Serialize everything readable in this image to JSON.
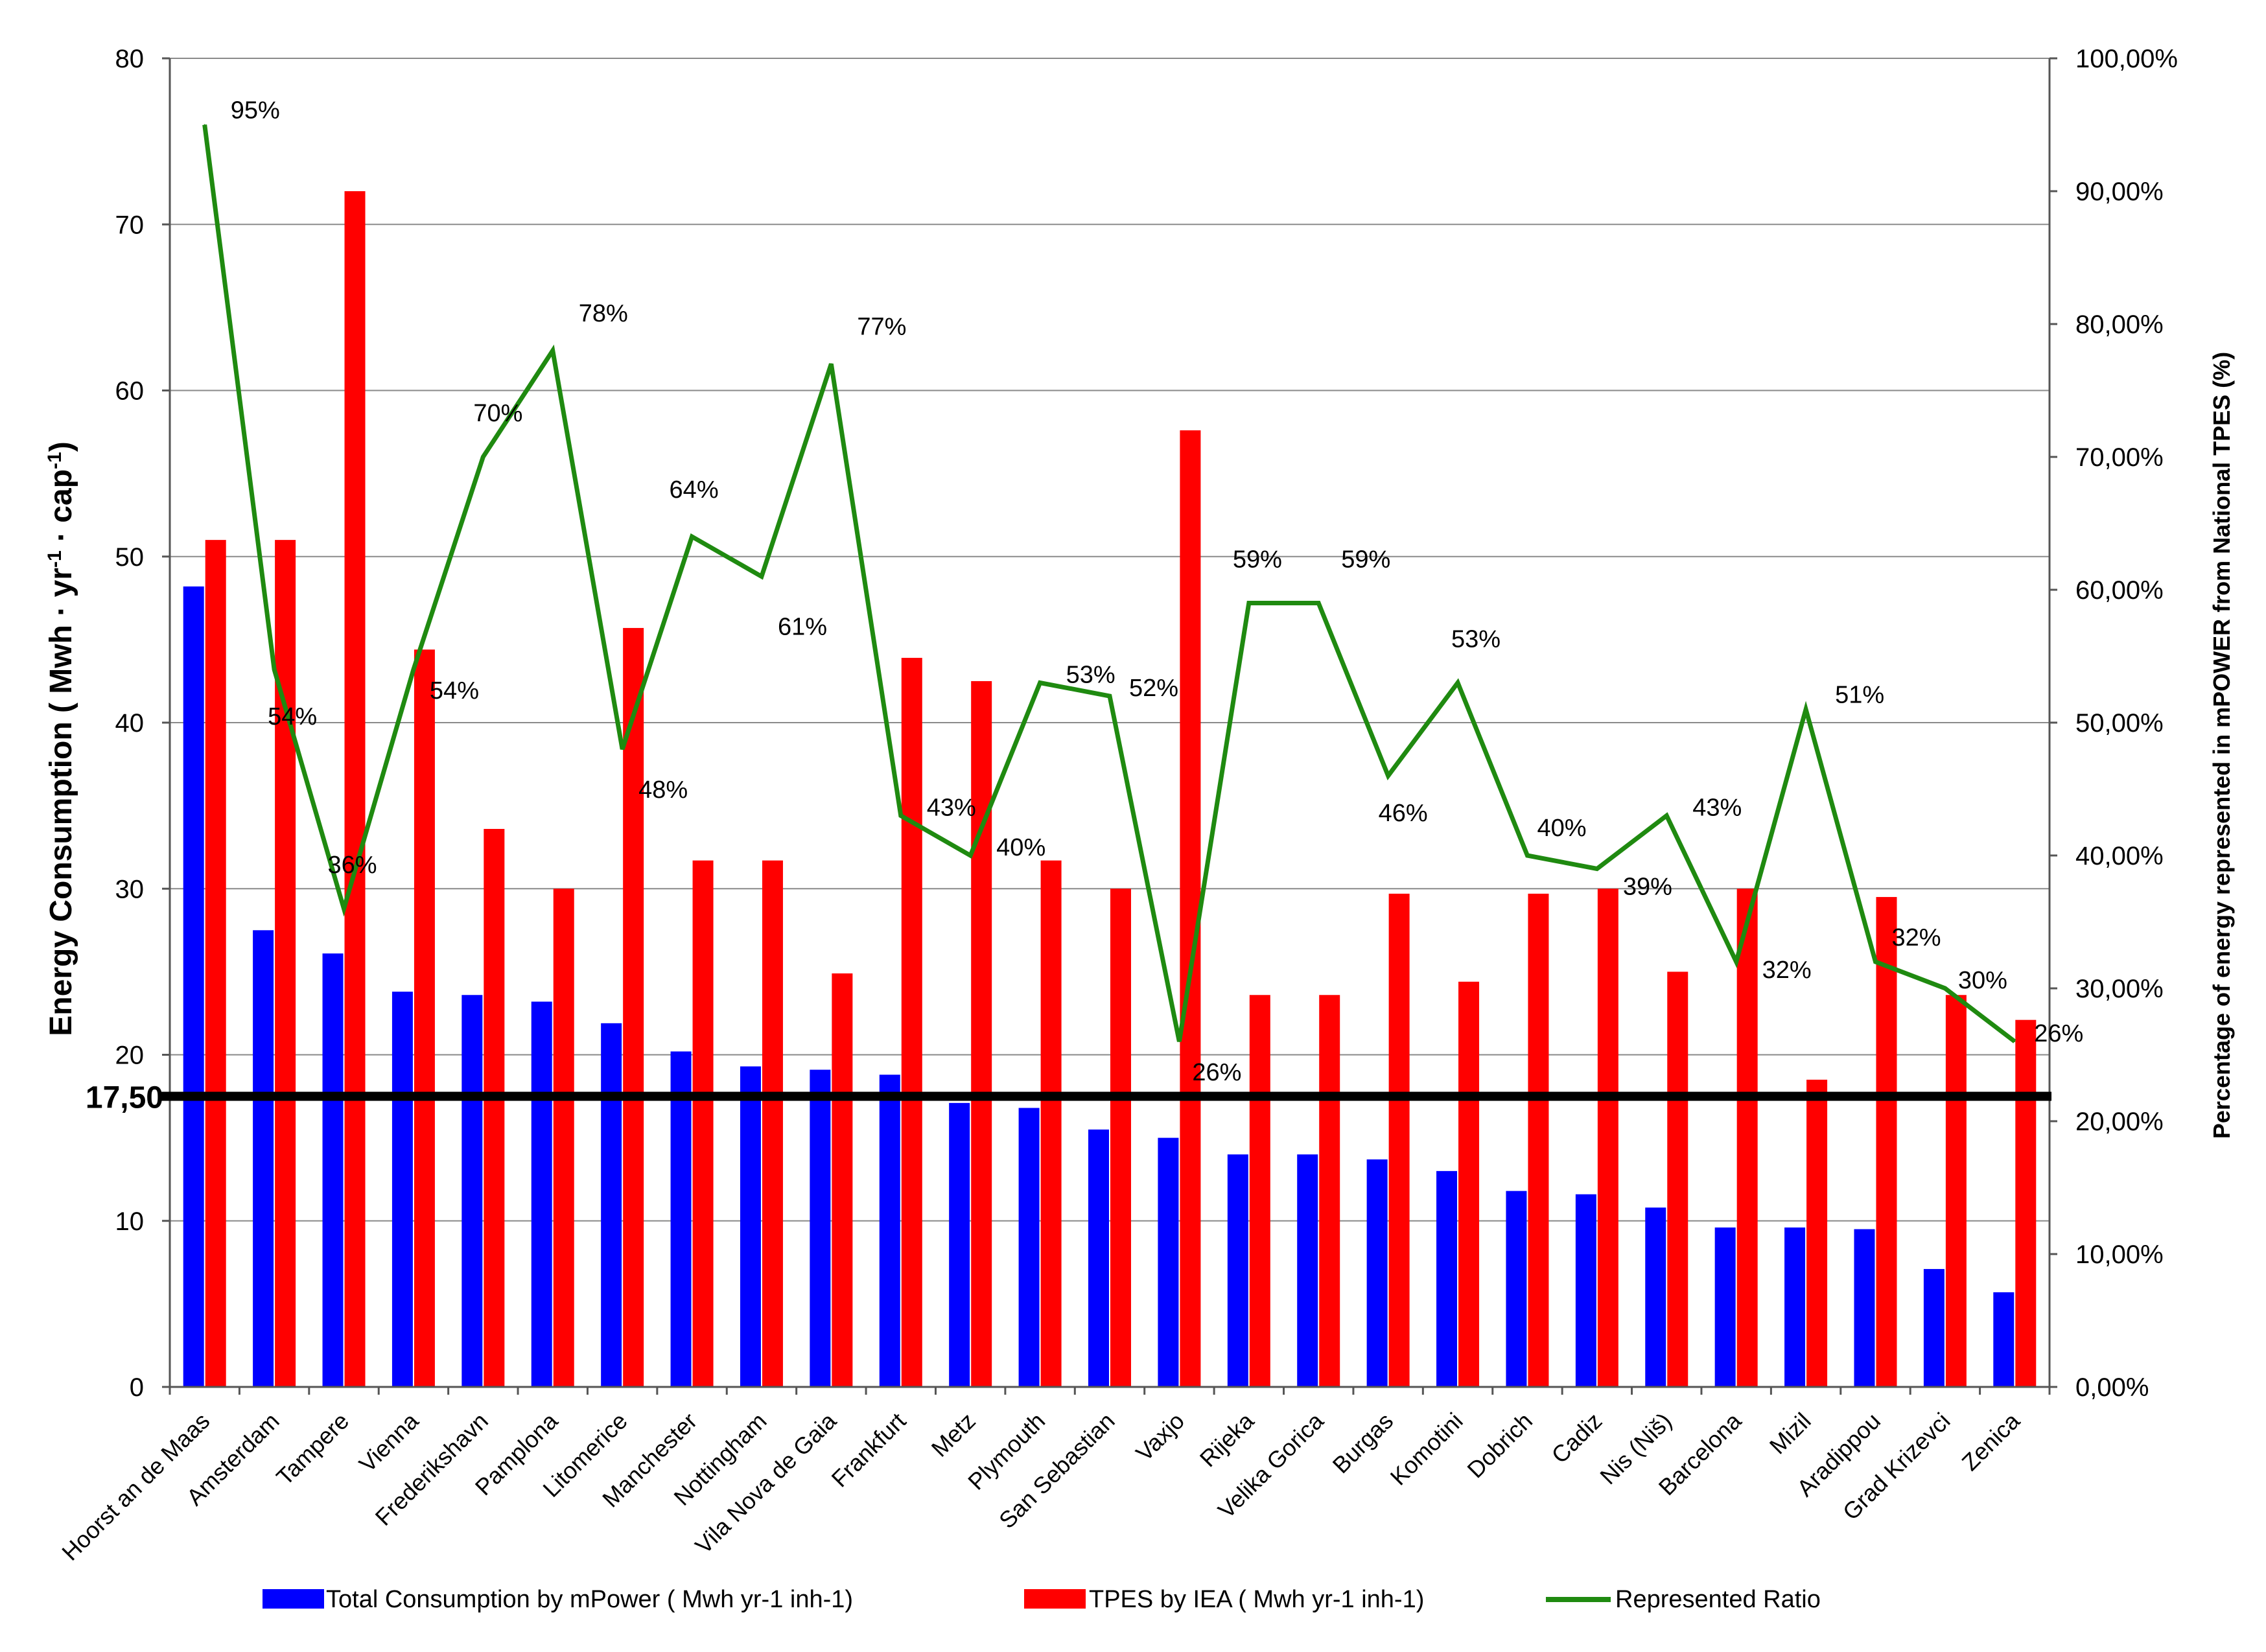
{
  "chart_data": {
    "type": "bar",
    "categories": [
      "Hoorst an de Maas",
      "Amsterdam",
      "Tampere",
      "Vienna",
      "Frederikshavn",
      "Pamplona",
      "Litomerice",
      "Manchester",
      "Nottingham",
      "Vila Nova de Gaia",
      "Frankfurt",
      "Metz",
      "Plymouth",
      "San Sebastian",
      "Vaxjo",
      "Rijeka",
      "Velika Gorica",
      "Burgas",
      "Komotini",
      "Dobrich",
      "Cadiz",
      "Nis (Niš)",
      "Barcelona",
      "Mizil",
      "Aradippou",
      "Grad Krizevci",
      "Zenica"
    ],
    "series": [
      {
        "name": "Total Consumption by mPower ( Mwh yr-1 inh-1)",
        "type": "bar",
        "axis": "left",
        "color": "#0000ff",
        "values": [
          48.2,
          27.5,
          26.1,
          23.8,
          23.6,
          23.2,
          21.9,
          20.2,
          19.3,
          19.1,
          18.8,
          17.1,
          16.8,
          15.5,
          15.0,
          14.0,
          14.0,
          13.7,
          13.0,
          11.8,
          11.6,
          10.8,
          9.6,
          9.6,
          9.5,
          7.1,
          5.7
        ]
      },
      {
        "name": "TPES by IEA ( Mwh yr-1 inh-1)",
        "type": "bar",
        "axis": "left",
        "color": "#ff0000",
        "values": [
          51.0,
          51.0,
          72.0,
          44.4,
          33.6,
          30.0,
          45.7,
          31.7,
          31.7,
          24.9,
          43.9,
          42.5,
          31.7,
          30.0,
          57.6,
          23.6,
          23.6,
          29.7,
          24.4,
          29.7,
          30.0,
          25.0,
          30.0,
          18.5,
          29.5,
          23.6,
          22.1
        ]
      },
      {
        "name": "Represented Ratio",
        "type": "line",
        "axis": "right",
        "color": "#1f8a10",
        "values": [
          95,
          54,
          36,
          54,
          70,
          78,
          48,
          64,
          61,
          77,
          43,
          40,
          53,
          52,
          26,
          59,
          59,
          46,
          53,
          40,
          39,
          43,
          32,
          51,
          32,
          30,
          26
        ],
        "labels": [
          "95%",
          "54%",
          "36%",
          "54%",
          "70%",
          "78%",
          "48%",
          "64%",
          "61%",
          "77%",
          "43%",
          "40%",
          "53%",
          "52%",
          "26%",
          "59%",
          "59%",
          "46%",
          "53%",
          "40%",
          "39%",
          "43%",
          "32%",
          "51%",
          "32%",
          "30%",
          "26%"
        ]
      }
    ],
    "y_left": {
      "label": "Energy Consumption ( Mwh · yr",
      "label_sup1": "-1",
      "label_mid": " · cap",
      "label_sup2": "-1",
      "label_end": ")",
      "min": 0,
      "max": 80,
      "step": 10,
      "ticks": [
        "0",
        "10",
        "20",
        "30",
        "40",
        "50",
        "60",
        "70",
        "80"
      ]
    },
    "y_right": {
      "label": "Percentage of energy represented in mPOWER from National TPES (%)",
      "min": 0,
      "max": 100,
      "step": 10,
      "ticks": [
        "0,00%",
        "10,00%",
        "20,00%",
        "30,00%",
        "40,00%",
        "50,00%",
        "60,00%",
        "70,00%",
        "80,00%",
        "90,00%",
        "100,00%"
      ]
    },
    "threshold": {
      "value": 17.5,
      "label": "17,50"
    },
    "grid": true,
    "legend_position": "bottom"
  }
}
